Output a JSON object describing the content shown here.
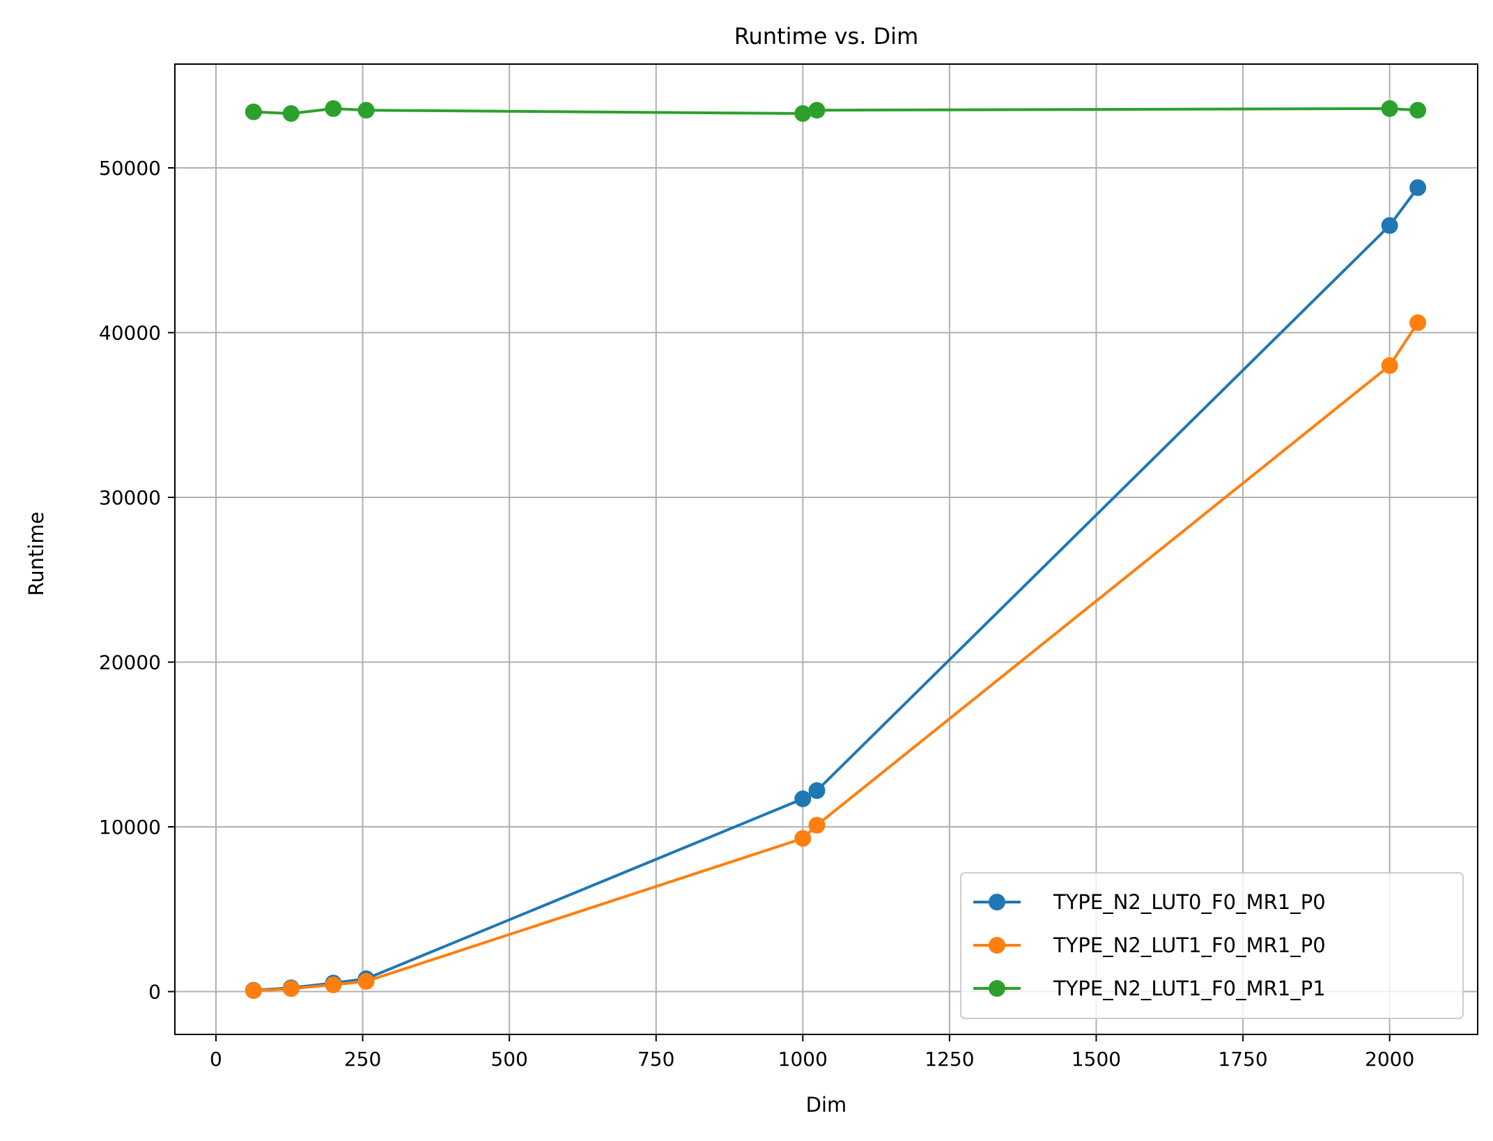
{
  "chart_data": {
    "type": "line",
    "title": "Runtime vs. Dim",
    "xlabel": "Dim",
    "ylabel": "Runtime",
    "xlim": [
      -70,
      2150
    ],
    "ylim": [
      -2600,
      56300
    ],
    "xticks": [
      0,
      250,
      500,
      750,
      1000,
      1250,
      1500,
      1750,
      2000
    ],
    "yticks": [
      0,
      10000,
      20000,
      30000,
      40000,
      50000
    ],
    "grid": true,
    "legend_position": "lower-right",
    "x": [
      64,
      128,
      200,
      256,
      1000,
      1024,
      2000,
      2048
    ],
    "series": [
      {
        "name": "TYPE_N2_LUT0_F0_MR1_P0",
        "color": "#1f77b4",
        "values": [
          80,
          230,
          520,
          780,
          11700,
          12200,
          46500,
          48800
        ]
      },
      {
        "name": "TYPE_N2_LUT1_F0_MR1_P0",
        "color": "#ff7f0e",
        "values": [
          60,
          180,
          410,
          620,
          9300,
          10100,
          38000,
          40600
        ]
      },
      {
        "name": "TYPE_N2_LUT1_F0_MR1_P1",
        "color": "#2ca02c",
        "values": [
          53400,
          53300,
          53600,
          53500,
          53300,
          53500,
          53600,
          53500
        ]
      }
    ]
  }
}
